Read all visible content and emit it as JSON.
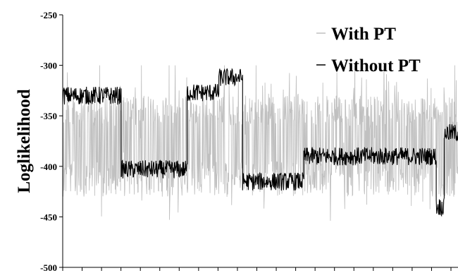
{
  "chart_data": {
    "type": "line",
    "title": "",
    "xlabel": "",
    "ylabel": "Loglikelihood",
    "ylim": [
      -500,
      -250
    ],
    "yticks": [
      -250,
      -300,
      -350,
      -400,
      -450,
      -500
    ],
    "ytick_labels": [
      "-250",
      "-300",
      "-350",
      "-400",
      "-450",
      "-500"
    ],
    "x_tick_count": 20,
    "legend_position": "top-right",
    "grid": false,
    "series": [
      {
        "name": "With PT",
        "color": "#c0c0c0",
        "style": "noisy, oscillating between about -330 and -420 over the whole run",
        "segments": [
          {
            "x": [
              0.0,
              1.0
            ],
            "mean": -370,
            "spread": 45
          }
        ]
      },
      {
        "name": "Without PT",
        "color": "#000000",
        "style": "step-like plateaus with small noise",
        "segments": [
          {
            "x": [
              0.0,
              0.148
            ],
            "level": -330
          },
          {
            "x": [
              0.148,
              0.315
            ],
            "level": -403
          },
          {
            "x": [
              0.315,
              0.395
            ],
            "level": -327
          },
          {
            "x": [
              0.395,
              0.455
            ],
            "level": -312
          },
          {
            "x": [
              0.455,
              0.61
            ],
            "level": -415
          },
          {
            "x": [
              0.61,
              0.945
            ],
            "level": -390
          },
          {
            "x": [
              0.945,
              0.965
            ],
            "level": -440
          },
          {
            "x": [
              0.965,
              1.0
            ],
            "level": -367
          }
        ]
      }
    ]
  }
}
